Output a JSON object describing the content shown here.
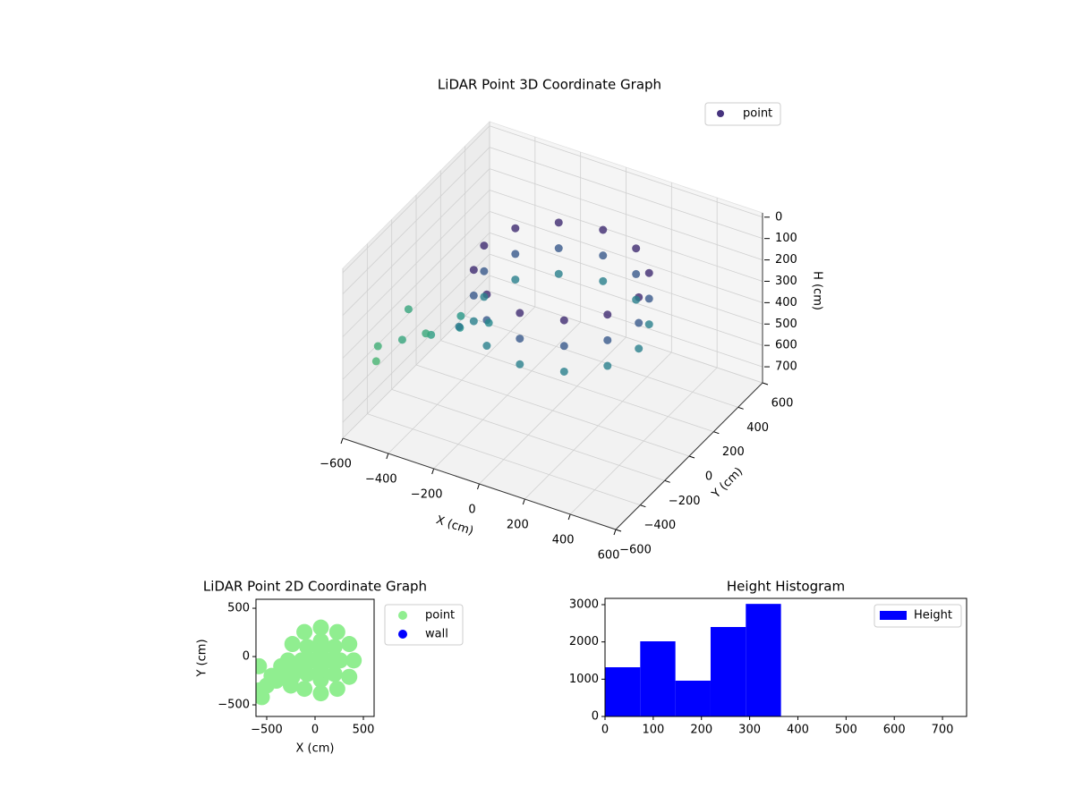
{
  "chart_data": [
    {
      "type": "scatter3d",
      "title": "LiDAR Point 3D Coordinate Graph",
      "xlabel": "X (cm)",
      "ylabel": "Y (cm)",
      "zlabel": "H (cm)",
      "xlim": [
        -600,
        600
      ],
      "xticks": [
        {
          "value": -600,
          "label": "−600"
        },
        {
          "value": -400,
          "label": "−400"
        },
        {
          "value": -200,
          "label": "−200"
        },
        0,
        200,
        400,
        600
      ],
      "ylim": [
        -600,
        600
      ],
      "yticks": [
        {
          "value": -600,
          "label": "−600"
        },
        {
          "value": -400,
          "label": "−400"
        },
        {
          "value": -200,
          "label": "−200"
        },
        0,
        200,
        400,
        600
      ],
      "zlim": [
        -20,
        775
      ],
      "zticks": [
        0,
        100,
        200,
        300,
        400,
        500,
        600,
        700
      ],
      "z_inverted": true,
      "colormap": "viridis",
      "grid": true,
      "legend": "upper right",
      "series": [
        {
          "name": "point",
          "color": "#46337e",
          "x": [
            400,
            354,
            230,
            60,
            -110,
            -234,
            -280,
            -234,
            -110,
            60,
            230,
            354,
            400,
            354,
            230,
            60,
            -110,
            -234,
            -280,
            -234,
            -110,
            60,
            230,
            354,
            400,
            354,
            230,
            60,
            -110,
            -234,
            -280,
            -234,
            -110,
            60,
            230,
            354,
            -200,
            -300,
            -400,
            -500,
            -580,
            -250,
            -350,
            -450,
            -550,
            -580
          ],
          "y": [
            -40,
            130,
            254,
            300,
            254,
            130,
            -40,
            -210,
            -334,
            -380,
            -334,
            -210,
            -40,
            130,
            254,
            300,
            254,
            130,
            -40,
            -210,
            -334,
            -380,
            -334,
            -210,
            -40,
            130,
            254,
            300,
            254,
            130,
            -40,
            -210,
            -334,
            -380,
            -334,
            -210,
            -150,
            -200,
            -250,
            -300,
            -350,
            -300,
            -100,
            -200,
            -420,
            -100
          ],
          "z": [
            80,
            80,
            80,
            80,
            80,
            80,
            80,
            80,
            80,
            80,
            80,
            80,
            200,
            200,
            200,
            200,
            200,
            200,
            200,
            200,
            200,
            200,
            200,
            200,
            320,
            320,
            320,
            320,
            320,
            320,
            320,
            320,
            320,
            320,
            320,
            320,
            350,
            380,
            420,
            450,
            480,
            300,
            400,
            460,
            500,
            450
          ]
        }
      ]
    },
    {
      "type": "scatter",
      "title": "LiDAR Point 2D Coordinate Graph",
      "xlabel": "X (cm)",
      "ylabel": "Y (cm)",
      "xlim": [
        -611,
        611
      ],
      "xticks": [
        {
          "value": -500,
          "label": "−500"
        },
        0,
        500
      ],
      "ylim": [
        -620,
        593
      ],
      "yticks": [
        {
          "value": -500,
          "label": "−500"
        },
        0,
        500
      ],
      "legend": "outside right",
      "series": [
        {
          "name": "point",
          "color": "#90ee90",
          "x": [
            400,
            354,
            230,
            60,
            -110,
            -234,
            -280,
            -234,
            -110,
            60,
            230,
            354,
            260,
            201,
            60,
            -81,
            -140,
            -81,
            60,
            201,
            160,
            60,
            -40,
            60,
            60,
            -200,
            -300,
            -400,
            -500,
            -580,
            -250,
            -350,
            -450,
            -550,
            -580
          ],
          "y": [
            -40,
            130,
            254,
            300,
            254,
            130,
            -40,
            -210,
            -334,
            -380,
            -334,
            -210,
            -40,
            101,
            160,
            101,
            -40,
            -181,
            -240,
            -181,
            -40,
            60,
            -40,
            -140,
            -40,
            -150,
            -200,
            -250,
            -300,
            -350,
            -300,
            -100,
            -200,
            -420,
            -100
          ]
        },
        {
          "name": "wall",
          "color": "#0000ff",
          "x": [],
          "y": []
        }
      ]
    },
    {
      "type": "histogram",
      "title": "Height Histogram",
      "bins": [
        0,
        73,
        146,
        219,
        292,
        365,
        438,
        511,
        584,
        657,
        730
      ],
      "counts": [
        1320,
        2016,
        960,
        2400,
        3020,
        0,
        0,
        0,
        0,
        0
      ],
      "xlim": [
        0,
        750
      ],
      "xticks": [
        0,
        100,
        200,
        300,
        400,
        500,
        600,
        700
      ],
      "ylim": [
        0,
        3168
      ],
      "yticks": [
        0,
        1000,
        2000,
        3000
      ],
      "legend": "upper right",
      "series": [
        {
          "name": "Height",
          "color": "#0000ff"
        }
      ]
    }
  ]
}
